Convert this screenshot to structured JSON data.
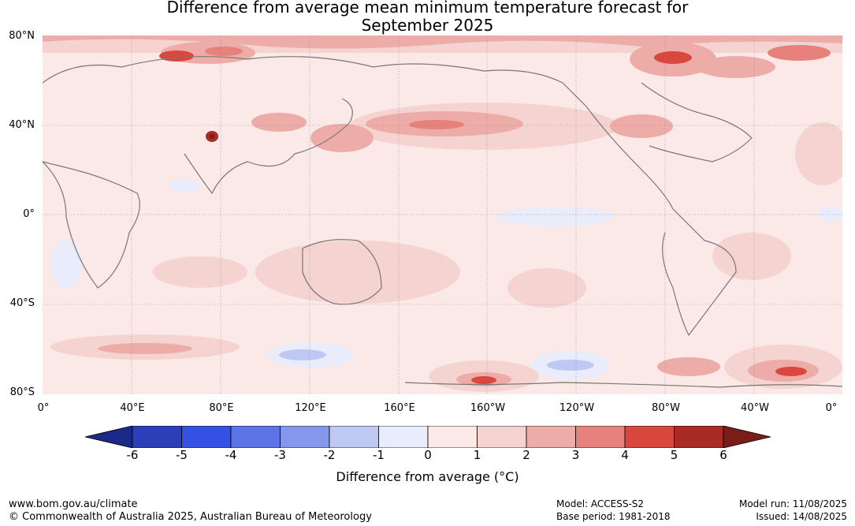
{
  "title_line1": "Difference from average mean minimum temperature forecast for",
  "title_line2": "September 2025",
  "lat_labels": [
    "80°N",
    "40°N",
    "0°",
    "40°S",
    "80°S"
  ],
  "lon_labels": [
    "0°",
    "40°E",
    "80°E",
    "120°E",
    "160°E",
    "160°W",
    "120°W",
    "80°W",
    "40°W",
    "0°"
  ],
  "colorbar": {
    "ticks": [
      "-6",
      "-5",
      "-4",
      "-3",
      "-2",
      "-1",
      "0",
      "1",
      "2",
      "3",
      "4",
      "5",
      "6"
    ],
    "label": "Difference from average (°C)",
    "colors": [
      "#1b2a86",
      "#2a3fb8",
      "#3351e3",
      "#5c74e8",
      "#8497ea",
      "#bfc8f3",
      "#e9edfb",
      "#fbe9e8",
      "#f5d3d1",
      "#edaca8",
      "#e6817b",
      "#d9483e",
      "#a92b24",
      "#7a1d18"
    ]
  },
  "footer": {
    "url": "www.bom.gov.au/climate",
    "copyright": "© Commonwealth of Australia 2025, Australian Bureau of Meteorology",
    "model": "Model: ACCESS-S2",
    "base_period": "Base period: 1981-2018",
    "model_run": "Model run: 11/08/2025",
    "issued": "Issued: 14/08/2025"
  }
}
